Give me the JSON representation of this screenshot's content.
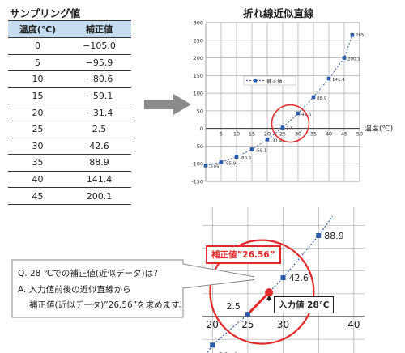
{
  "sampling": {
    "title": "サンプリング値",
    "headers": [
      "温度(℃)",
      "補正値"
    ],
    "rows": [
      [
        "0",
        "−105.0"
      ],
      [
        "5",
        "−95.9"
      ],
      [
        "10",
        "−80.6"
      ],
      [
        "15",
        "−59.1"
      ],
      [
        "20",
        "−31.4"
      ],
      [
        "25",
        "2.5"
      ],
      [
        "30",
        "42.6"
      ],
      [
        "35",
        "88.9"
      ],
      [
        "40",
        "141.4"
      ],
      [
        "45",
        "200.1"
      ]
    ]
  },
  "line_chart": {
    "title": "折れ線近似直線"
  },
  "qa": {
    "question": "Q. 28 ℃での補正値(近似データ)は?",
    "answer_line1": "A. 入力値前後の近似直線から",
    "answer_line2": "補正値(近似データ)”26.56”を求めます。"
  },
  "zoom": {
    "callout_value": "補正値”26.56”",
    "callout_input": "入力値 28℃",
    "highlight_x": 28,
    "highlight_y": 26.56
  },
  "colors": {
    "series": "#2b5aa8",
    "highlight": "#e32a2a",
    "header_fill": "#c6dcef",
    "grid": "#9a9a9a",
    "arrow": "#8a8a8a"
  },
  "chart_data": [
    {
      "type": "line",
      "title": "",
      "xlabel": "温度(℃)",
      "ylabel": "",
      "xlim": [
        0,
        50
      ],
      "ylim": [
        -150,
        300
      ],
      "x_ticks": [
        "5",
        "10",
        "15",
        "20",
        "25",
        "30",
        "35",
        "40",
        "45",
        "50"
      ],
      "y_ticks": [
        "-150",
        "-100",
        "-50",
        "0",
        "50",
        "100",
        "150",
        "200",
        "250",
        "300"
      ],
      "grid": true,
      "legend": "left",
      "series": [
        {
          "name": "補正値",
          "x": [
            0,
            5,
            10,
            15,
            20,
            25,
            30,
            35,
            40,
            45
          ],
          "y": [
            -105,
            -95.9,
            -80.6,
            -59.1,
            -31.4,
            2.5,
            42.6,
            88.9,
            141.4,
            200.1
          ],
          "labels": [
            "-105",
            "-95.9",
            "-80.6",
            "-59.1",
            "-31.4",
            "2.5",
            "42.6",
            "88.9",
            "141.4",
            "200.1"
          ],
          "end_label": "265"
        }
      ]
    },
    {
      "type": "line",
      "title": "",
      "xlim": [
        18.6,
        41.5
      ],
      "ylim": [
        -40,
        120
      ],
      "x_ticks": [
        "20",
        "25",
        "30",
        "40"
      ],
      "grid": true,
      "series": [
        {
          "x": [
            20,
            25,
            30,
            35
          ],
          "y": [
            -31.4,
            2.5,
            42.6,
            88.9
          ],
          "labels": [
            "-31.4",
            "2.5",
            "42.6",
            "88.9"
          ]
        }
      ]
    }
  ]
}
